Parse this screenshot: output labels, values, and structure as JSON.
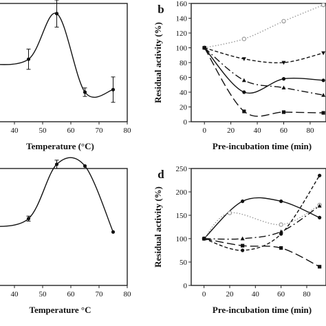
{
  "chart_data": [
    {
      "id": "a",
      "type": "line",
      "panel_label": "",
      "xlabel": "Temperature (°C)",
      "ylabel": "",
      "xlim": [
        30,
        80
      ],
      "ylim": [
        0,
        140
      ],
      "xticks": [
        "40",
        "50",
        "60",
        "70",
        "80"
      ],
      "series": [
        {
          "x": [
            30,
            45,
            55,
            65,
            75
          ],
          "values": [
            68,
            74,
            128,
            35,
            38
          ],
          "errors": [
            10,
            12,
            16,
            5,
            15
          ],
          "style": "solid",
          "marker": "dot"
        }
      ]
    },
    {
      "id": "b",
      "type": "line",
      "panel_label": "b",
      "xlabel": "Pre-incubation time (min)",
      "ylabel": "Residual activity (%)",
      "xlim": [
        -10,
        92
      ],
      "ylim": [
        0,
        160
      ],
      "xticks": [
        "0",
        "20",
        "40",
        "60",
        "80"
      ],
      "yticks": [
        "0",
        "20",
        "40",
        "60",
        "80",
        "100",
        "120",
        "140",
        "160"
      ],
      "series": [
        {
          "x": [
            0,
            30,
            60,
            90
          ],
          "values": [
            100,
            112,
            136,
            158
          ],
          "style": "dotted",
          "marker": "circle-open",
          "color": "#999999"
        },
        {
          "x": [
            0,
            30,
            60,
            90
          ],
          "values": [
            100,
            85,
            80,
            93
          ],
          "style": "short-dash",
          "marker": "triangle-down"
        },
        {
          "x": [
            0,
            30,
            60,
            90
          ],
          "values": [
            100,
            56,
            46,
            36
          ],
          "style": "dash-dot",
          "marker": "triangle-up"
        },
        {
          "x": [
            0,
            30,
            60,
            90
          ],
          "values": [
            100,
            40,
            58,
            56
          ],
          "style": "solid",
          "marker": "dot"
        },
        {
          "x": [
            0,
            30,
            60,
            90
          ],
          "values": [
            100,
            14,
            13,
            12
          ],
          "style": "long-dash",
          "marker": "square"
        }
      ]
    },
    {
      "id": "c",
      "type": "line",
      "panel_label": "",
      "xlabel": "Temperature °C",
      "ylabel": "",
      "xlim": [
        30,
        80
      ],
      "ylim": [
        0,
        140
      ],
      "xticks": [
        "40",
        "50",
        "60",
        "70",
        "80"
      ],
      "series": [
        {
          "x": [
            30,
            45,
            55,
            65,
            75
          ],
          "values": [
            70,
            80,
            145,
            143,
            64
          ],
          "errors": [
            3,
            3,
            5,
            0,
            0
          ],
          "style": "solid",
          "marker": "dot"
        }
      ]
    },
    {
      "id": "d",
      "type": "line",
      "panel_label": "d",
      "xlabel": "Pre-incubation time (min)",
      "ylabel": "Residual activity (%)",
      "xlim": [
        -10,
        95
      ],
      "ylim": [
        0,
        250
      ],
      "xticks": [
        "0",
        "20",
        "40",
        "60",
        "80"
      ],
      "yticks": [
        "0",
        "50",
        "100",
        "150",
        "200",
        "250"
      ],
      "series": [
        {
          "x": [
            0,
            30,
            60,
            90
          ],
          "values": [
            100,
            180,
            180,
            145
          ],
          "style": "solid",
          "marker": "dot"
        },
        {
          "x": [
            0,
            20,
            60,
            90
          ],
          "values": [
            100,
            155,
            130,
            172
          ],
          "style": "dotted",
          "marker": "circle-open",
          "color": "#999999"
        },
        {
          "x": [
            0,
            30,
            60,
            90
          ],
          "values": [
            100,
            100,
            115,
            170
          ],
          "style": "dash-dot",
          "marker": "triangle-up"
        },
        {
          "x": [
            0,
            30,
            60,
            90
          ],
          "values": [
            100,
            75,
            110,
            235
          ],
          "style": "short-dash",
          "marker": "dot"
        },
        {
          "x": [
            0,
            30,
            60,
            90
          ],
          "values": [
            100,
            85,
            80,
            40
          ],
          "style": "long-dash",
          "marker": "square"
        }
      ]
    }
  ]
}
